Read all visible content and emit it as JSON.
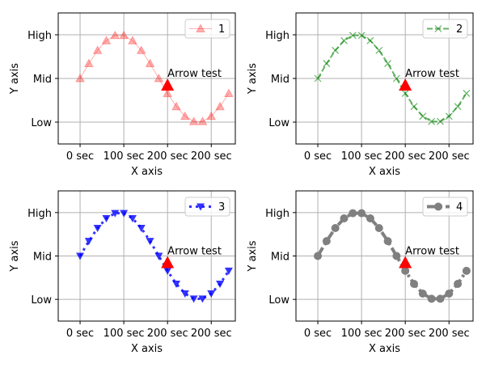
{
  "chart_data": [
    {
      "type": "line",
      "xlabel": "X axis",
      "ylabel": "Y axis",
      "xlim": [
        -2.5,
        17.75
      ],
      "ylim": [
        -1.5,
        1.5
      ],
      "grid": true,
      "legend": "top-right",
      "x_ticks": [
        0,
        5,
        10,
        15
      ],
      "x_tick_labels": [
        "0 sec",
        "100 sec",
        "200 sec",
        "200 sec"
      ],
      "y_ticks": [
        1,
        0,
        -1
      ],
      "y_tick_labels": [
        "High",
        "Mid",
        "Low"
      ],
      "series": [
        {
          "name": "1",
          "color": "#ff0000",
          "style": "solid-thin",
          "marker": "triangle-up",
          "x": [
            0,
            1,
            2,
            3,
            4,
            5,
            6,
            7,
            8,
            9,
            10,
            11,
            12,
            13,
            14,
            15,
            16,
            17
          ],
          "y": [
            0,
            0.342,
            0.643,
            0.866,
            0.985,
            0.985,
            0.866,
            0.643,
            0.342,
            0,
            -0.342,
            -0.643,
            -0.866,
            -0.985,
            -0.985,
            -0.866,
            -0.643,
            -0.342
          ]
        }
      ],
      "annotation": {
        "text": "Arrow test",
        "x": 10,
        "y": 0,
        "color": "#ff0000"
      }
    },
    {
      "type": "line",
      "xlabel": "X axis",
      "ylabel": "Y axis",
      "xlim": [
        -2.5,
        17.75
      ],
      "ylim": [
        -1.5,
        1.5
      ],
      "grid": true,
      "legend": "top-right",
      "x_ticks": [
        0,
        5,
        10,
        15
      ],
      "x_tick_labels": [
        "0 sec",
        "100 sec",
        "200 sec",
        "200 sec"
      ],
      "y_ticks": [
        1,
        0,
        -1
      ],
      "y_tick_labels": [
        "High",
        "Mid",
        "Low"
      ],
      "series": [
        {
          "name": "2",
          "color": "#008000",
          "style": "dashed",
          "marker": "x",
          "x": [
            0,
            1,
            2,
            3,
            4,
            5,
            6,
            7,
            8,
            9,
            10,
            11,
            12,
            13,
            14,
            15,
            16,
            17
          ],
          "y": [
            0,
            0.342,
            0.643,
            0.866,
            0.985,
            0.985,
            0.866,
            0.643,
            0.342,
            0,
            -0.342,
            -0.643,
            -0.866,
            -0.985,
            -0.985,
            -0.866,
            -0.643,
            -0.342
          ]
        }
      ],
      "annotation": {
        "text": "Arrow test",
        "x": 10,
        "y": 0,
        "color": "#ff0000"
      }
    },
    {
      "type": "line",
      "xlabel": "X axis",
      "ylabel": "Y axis",
      "xlim": [
        -2.5,
        17.75
      ],
      "ylim": [
        -1.5,
        1.5
      ],
      "grid": true,
      "legend": "top-right",
      "x_ticks": [
        0,
        5,
        10,
        15
      ],
      "x_tick_labels": [
        "0 sec",
        "100 sec",
        "200 sec",
        "200 sec"
      ],
      "y_ticks": [
        1,
        0,
        -1
      ],
      "y_tick_labels": [
        "High",
        "Mid",
        "Low"
      ],
      "series": [
        {
          "name": "3",
          "color": "#0000ff",
          "style": "dotted",
          "marker": "triangle-down",
          "x": [
            0,
            1,
            2,
            3,
            4,
            5,
            6,
            7,
            8,
            9,
            10,
            11,
            12,
            13,
            14,
            15,
            16,
            17
          ],
          "y": [
            0,
            0.342,
            0.643,
            0.866,
            0.985,
            0.985,
            0.866,
            0.643,
            0.342,
            0,
            -0.342,
            -0.643,
            -0.866,
            -0.985,
            -0.985,
            -0.866,
            -0.643,
            -0.342
          ]
        }
      ],
      "annotation": {
        "text": "Arrow test",
        "x": 10,
        "y": 0,
        "color": "#ff0000"
      }
    },
    {
      "type": "line",
      "xlabel": "X axis",
      "ylabel": "Y axis",
      "xlim": [
        -2.5,
        17.75
      ],
      "ylim": [
        -1.5,
        1.5
      ],
      "grid": true,
      "legend": "top-right",
      "x_ticks": [
        0,
        5,
        10,
        15
      ],
      "x_tick_labels": [
        "0 sec",
        "100 sec",
        "200 sec",
        "200 sec"
      ],
      "y_ticks": [
        1,
        0,
        -1
      ],
      "y_tick_labels": [
        "High",
        "Mid",
        "Low"
      ],
      "series": [
        {
          "name": "4",
          "color": "#808080",
          "style": "dash-dot-thick",
          "marker": "circle",
          "x": [
            0,
            1,
            2,
            3,
            4,
            5,
            6,
            7,
            8,
            9,
            10,
            11,
            12,
            13,
            14,
            15,
            16,
            17
          ],
          "y": [
            0,
            0.342,
            0.643,
            0.866,
            0.985,
            0.985,
            0.866,
            0.643,
            0.342,
            0,
            -0.342,
            -0.643,
            -0.866,
            -0.985,
            -0.985,
            -0.866,
            -0.643,
            -0.342
          ]
        }
      ],
      "annotation": {
        "text": "Arrow test",
        "x": 10,
        "y": 0,
        "color": "#ff0000"
      }
    }
  ]
}
